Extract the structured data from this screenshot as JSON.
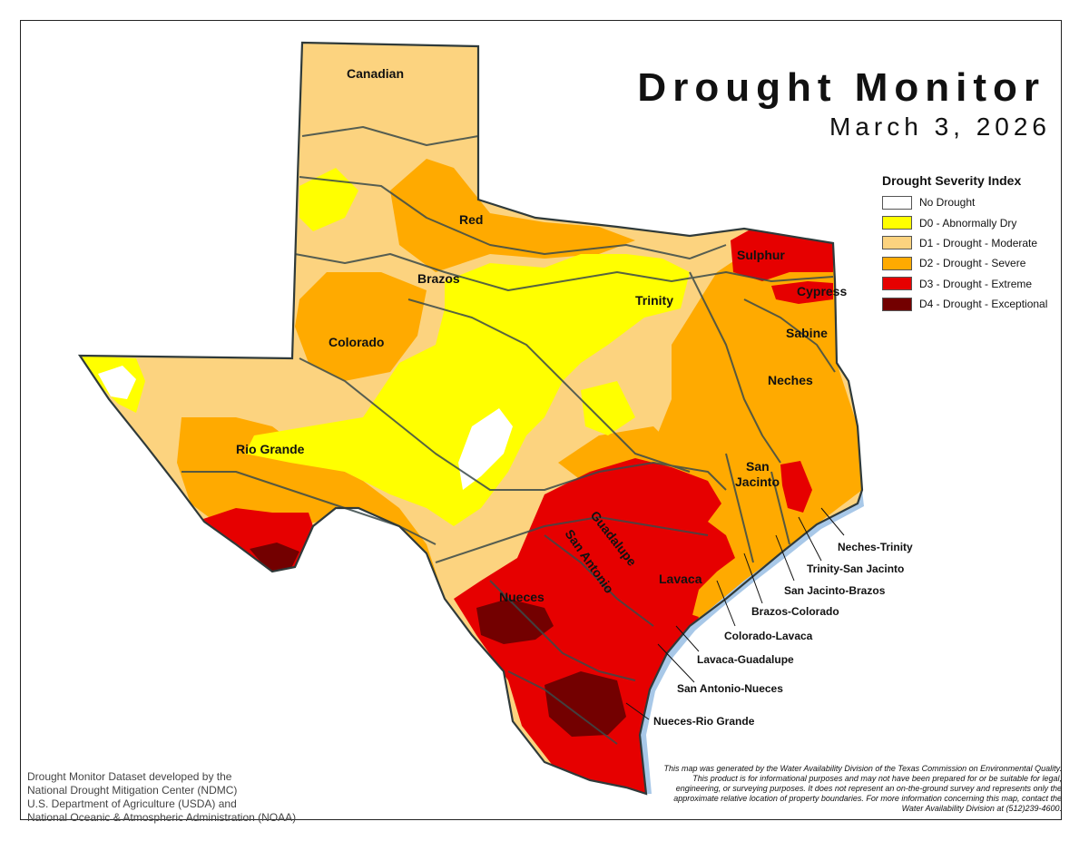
{
  "title": "Drought Monitor",
  "date": "March 3, 2026",
  "legend": {
    "title": "Drought Severity Index",
    "items": [
      {
        "label": "No Drought",
        "color": "#ffffff"
      },
      {
        "label": "D0 - Abnormally Dry",
        "color": "#ffff00"
      },
      {
        "label": "D1 - Drought - Moderate",
        "color": "#fcd37f"
      },
      {
        "label": "D2 - Drought - Severe",
        "color": "#ffaa00"
      },
      {
        "label": "D3 - Drought - Extreme",
        "color": "#e60000"
      },
      {
        "label": "D4 - Drought - Exceptional",
        "color": "#730000"
      }
    ]
  },
  "basins": {
    "canadian": "Canadian",
    "red": "Red",
    "brazos": "Brazos",
    "colorado": "Colorado",
    "rio_grande": "Rio Grande",
    "trinity": "Trinity",
    "sulphur": "Sulphur",
    "cypress": "Cypress",
    "sabine": "Sabine",
    "neches": "Neches",
    "san_jacinto_1": "San",
    "san_jacinto_2": "Jacinto",
    "guadalupe": "Guadalupe",
    "san_antonio": "San Antonio",
    "lavaca": "Lavaca",
    "nueces": "Nueces"
  },
  "coastal_basins": {
    "neches_trinity": "Neches-Trinity",
    "trinity_san_jacinto": "Trinity-San Jacinto",
    "san_jacinto_brazos": "San Jacinto-Brazos",
    "brazos_colorado": "Brazos-Colorado",
    "colorado_lavaca": "Colorado-Lavaca",
    "lavaca_guadalupe": "Lavaca-Guadalupe",
    "san_antonio_nueces": "San Antonio-Nueces",
    "nueces_rio_grande": "Nueces-Rio Grande"
  },
  "credit": {
    "line1": "Drought Monitor Dataset developed by the",
    "line2": "National Drought Mitigation Center (NDMC)",
    "line3": "U.S. Department of Agriculture (USDA) and",
    "line4": "National Oceanic & Atmospheric Administration (NOAA)"
  },
  "disclaimer": "This map was generated by the Water Availability Division of the Texas Commission on Environmental Quality. This product is for informational purposes and may not have been prepared for or be suitable for legal, engineering, or surveying purposes. It does not represent an on-the-ground survey and represents only the approximate relative location of property boundaries. For more information concerning this map, contact the Water Availability Division at (512)239-4600."
}
